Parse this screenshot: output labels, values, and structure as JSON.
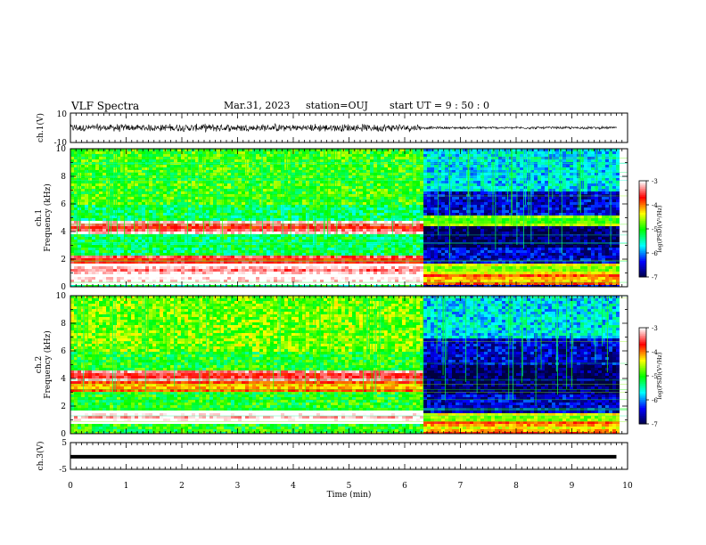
{
  "header": {
    "title": "VLF Spectra",
    "date": "Mar.31, 2023",
    "station": "station=OUJ",
    "start": "start  UT =   9 : 50 : 0"
  },
  "colors": {
    "colormap": [
      "#ffffff",
      "#ff0000",
      "#ffff00",
      "#00ff00",
      "#00ffff",
      "#0000ff",
      "#000040"
    ],
    "waveform": "#000000"
  },
  "chart_data": [
    {
      "type": "line",
      "panel": "ch1-waveform",
      "ylabel": "ch.1(V)",
      "yticklabels": [
        "10",
        "-10"
      ],
      "ylim": [
        -10,
        10
      ],
      "xlim": [
        0,
        10
      ],
      "segments": [
        {
          "t_start": 0.0,
          "t_end": 6.3,
          "envelope_v": [
            -3.0,
            3.0
          ]
        },
        {
          "t_start": 6.3,
          "t_end": 9.8,
          "envelope_v": [
            -1.0,
            1.0
          ]
        }
      ]
    },
    {
      "type": "heatmap",
      "panel": "ch1-spectrogram",
      "ylabel": "ch.1\nFrequency (kHz)",
      "yticks": [
        0,
        2,
        4,
        6,
        8,
        10
      ],
      "ylim": [
        0,
        10
      ],
      "xlim": [
        0,
        10
      ],
      "colorbar": {
        "label": "log(PSD)(V²/Hz)",
        "ticks": [
          -3,
          -4,
          -5,
          -6,
          -7
        ],
        "range": [
          -7,
          -3
        ]
      },
      "segments": [
        {
          "t_start": 0.0,
          "t_end": 6.3,
          "bands_khz": [
            {
              "f": 0.6,
              "log_psd": -3.2
            },
            {
              "f": 1.3,
              "log_psd": -3.4
            },
            {
              "f": 2.0,
              "log_psd": -3.8
            },
            {
              "f": 4.4,
              "log_psd": -3.7
            }
          ],
          "background_log_psd": -5.2
        },
        {
          "t_start": 6.3,
          "t_end": 9.8,
          "bands_khz": [
            {
              "f": 0.6,
              "log_psd": -4.3
            },
            {
              "f": 1.4,
              "log_psd": -4.8
            },
            {
              "f": 4.9,
              "log_psd": -5.0
            }
          ],
          "background_log_psd": -6.5
        }
      ]
    },
    {
      "type": "heatmap",
      "panel": "ch2-spectrogram",
      "ylabel": "ch.2\nFrequency (kHz)",
      "yticks": [
        0,
        2,
        4,
        6,
        8,
        10
      ],
      "ylim": [
        0,
        10
      ],
      "xlim": [
        0,
        10
      ],
      "colorbar": {
        "label": "log(PSD)(V²/Hz)",
        "ticks": [
          -3,
          -4,
          -5,
          -6,
          -7
        ],
        "range": [
          -7,
          -3
        ]
      },
      "segments": [
        {
          "t_start": 0.0,
          "t_end": 6.3,
          "bands_khz": [
            {
              "f": 1.3,
              "log_psd": -3.2
            },
            {
              "f": 4.3,
              "log_psd": -3.7
            },
            {
              "f": 3.5,
              "log_psd": -4.3
            }
          ],
          "background_log_psd": -5.0
        },
        {
          "t_start": 6.3,
          "t_end": 9.8,
          "bands_khz": [
            {
              "f": 0.5,
              "log_psd": -4.4
            },
            {
              "f": 1.2,
              "log_psd": -4.8
            }
          ],
          "background_log_psd": -6.5
        }
      ]
    },
    {
      "type": "line",
      "panel": "ch3-waveform",
      "ylabel": "ch.3(V)",
      "yticklabels": [
        "5",
        "-5"
      ],
      "ylim": [
        -5,
        5
      ],
      "xlim": [
        0,
        10
      ],
      "xlabel": "Time (min)",
      "xticklabels": [
        "0",
        "1",
        "2",
        "3",
        "4",
        "5",
        "6",
        "7",
        "8",
        "9",
        "10"
      ],
      "segments": [
        {
          "t_start": 0.0,
          "t_end": 9.8,
          "value_v": -0.3
        }
      ]
    }
  ]
}
